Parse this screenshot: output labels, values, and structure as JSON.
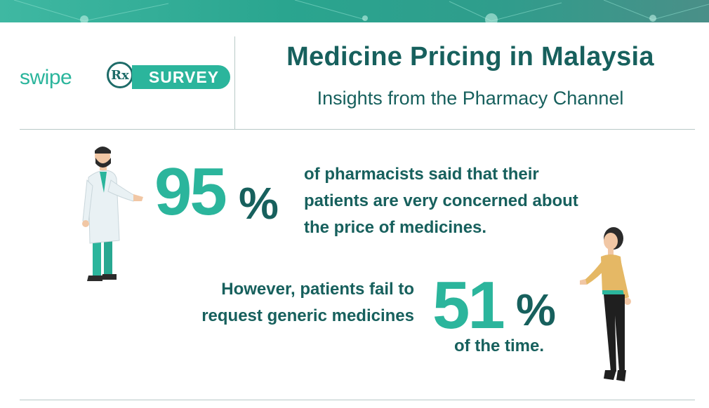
{
  "header": {
    "logo_swipe": "swipe",
    "logo_rx": "Rx",
    "logo_survey": "SURVEY",
    "title": "Medicine Pricing in Malaysia",
    "subtitle": "Insights from the Pharmacy Channel"
  },
  "stat1": {
    "value": "95",
    "unit": "%",
    "text": "of pharmacists said that their patients are very concerned about the price of medicines."
  },
  "stat2": {
    "lead": "However, patients fail to request generic medicines",
    "value": "51",
    "unit": "%",
    "trail": "of the time."
  },
  "colors": {
    "accent": "#2bb59c",
    "dark_teal": "#17605d",
    "divider": "#b8c9c7"
  },
  "icons": [
    "pharmacist-figure",
    "patient-figure",
    "network-pattern"
  ]
}
